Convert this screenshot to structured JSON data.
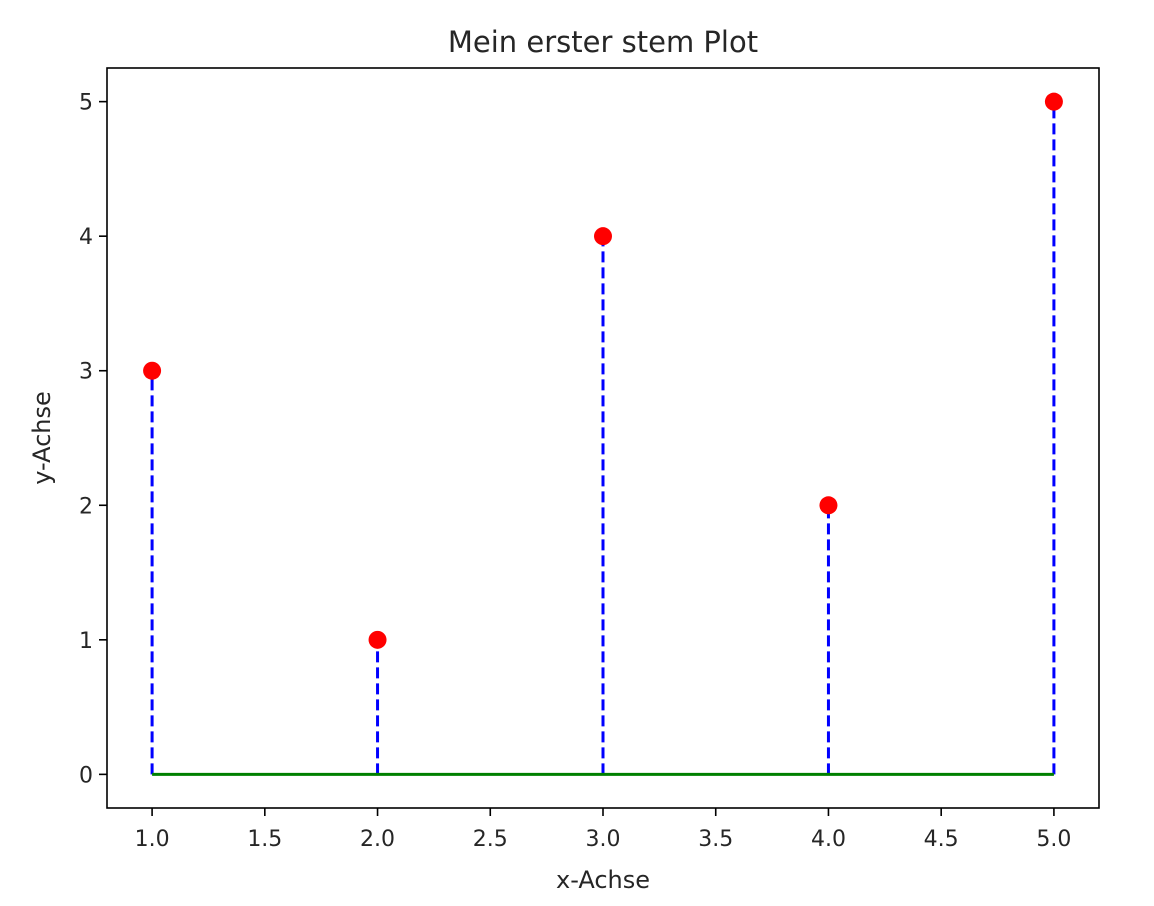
{
  "chart_data": {
    "type": "stem",
    "title": "Mein erster stem Plot",
    "xlabel": "x-Achse",
    "ylabel": "y-Achse",
    "x": [
      1,
      2,
      3,
      4,
      5
    ],
    "y": [
      3,
      1,
      4,
      2,
      5
    ],
    "baseline": 0,
    "xlim": [
      0.8,
      5.2
    ],
    "ylim": [
      -0.25,
      5.25
    ],
    "xticks": [
      "1.0",
      "1.5",
      "2.0",
      "2.5",
      "3.0",
      "3.5",
      "4.0",
      "4.5",
      "5.0"
    ],
    "yticks": [
      "0",
      "1",
      "2",
      "3",
      "4",
      "5"
    ],
    "grid": false,
    "colors": {
      "stem": "#0000ff",
      "marker": "#ff0000",
      "baseline": "#008000",
      "axes": "#000000"
    },
    "stem_style": "dashed"
  }
}
